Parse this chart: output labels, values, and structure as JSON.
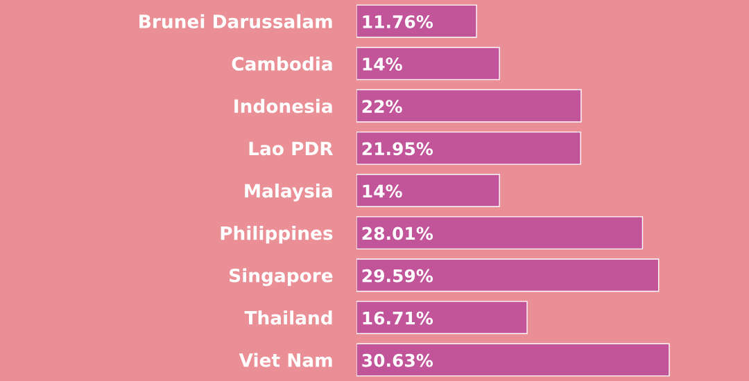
{
  "chart_data": {
    "type": "bar",
    "orientation": "horizontal",
    "categories": [
      "Brunei Darussalam",
      "Cambodia",
      "Indonesia",
      "Lao PDR",
      "Malaysia",
      "Philippines",
      "Singapore",
      "Thailand",
      "Viet Nam"
    ],
    "values": [
      11.76,
      14,
      22,
      21.95,
      14,
      28.01,
      29.59,
      16.71,
      30.63
    ],
    "value_labels": [
      "11.76%",
      "14%",
      "22%",
      "21.95%",
      "14%",
      "28.01%",
      "29.59%",
      "16.71%",
      "30.63%"
    ],
    "color": "#c2549a",
    "grid": false,
    "legend": false
  }
}
